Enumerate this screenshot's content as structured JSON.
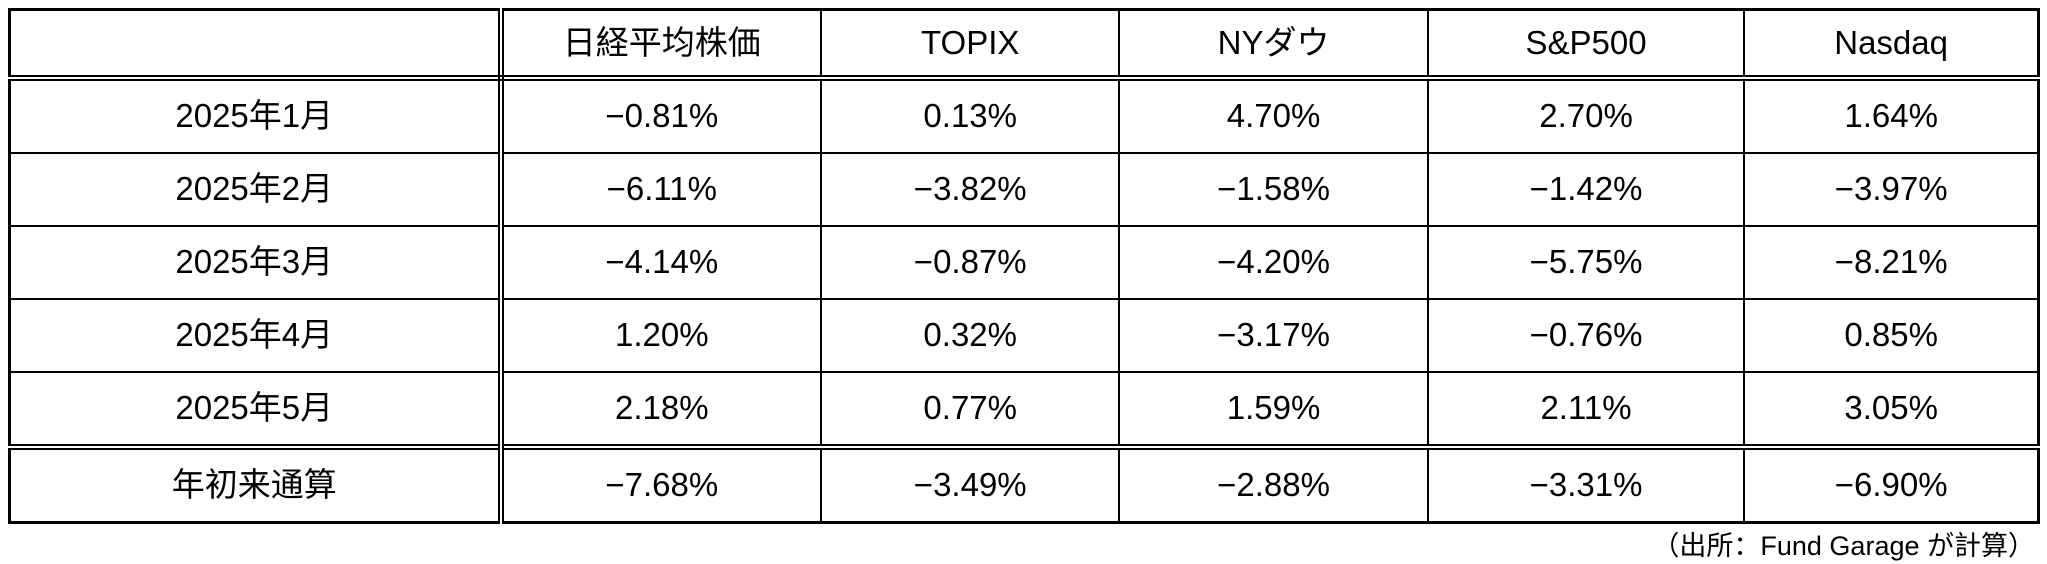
{
  "chart_data": {
    "type": "table",
    "columns": [
      "",
      "日経平均株価",
      "TOPIX",
      "NYダウ",
      "S&P500",
      "Nasdaq"
    ],
    "rows": [
      {
        "label": "2025年1月",
        "values": [
          "−0.81%",
          "0.13%",
          "4.70%",
          "2.70%",
          "1.64%"
        ]
      },
      {
        "label": "2025年2月",
        "values": [
          "−6.11%",
          "−3.82%",
          "−1.58%",
          "−1.42%",
          "−3.97%"
        ]
      },
      {
        "label": "2025年3月",
        "values": [
          "−4.14%",
          "−0.87%",
          "−4.20%",
          "−5.75%",
          "−8.21%"
        ]
      },
      {
        "label": "2025年4月",
        "values": [
          "1.20%",
          "0.32%",
          "−3.17%",
          "−0.76%",
          "0.85%"
        ]
      },
      {
        "label": "2025年5月",
        "values": [
          "2.18%",
          "0.77%",
          "1.59%",
          "2.11%",
          "3.05%"
        ]
      },
      {
        "label": "年初来通算",
        "values": [
          "−7.68%",
          "−3.49%",
          "−2.88%",
          "−3.31%",
          "−6.90%"
        ]
      }
    ],
    "source_note": "（出所：Fund Garage が計算）",
    "colors": {
      "border": "#000000",
      "text": "#000000",
      "background": "#ffffff"
    }
  }
}
